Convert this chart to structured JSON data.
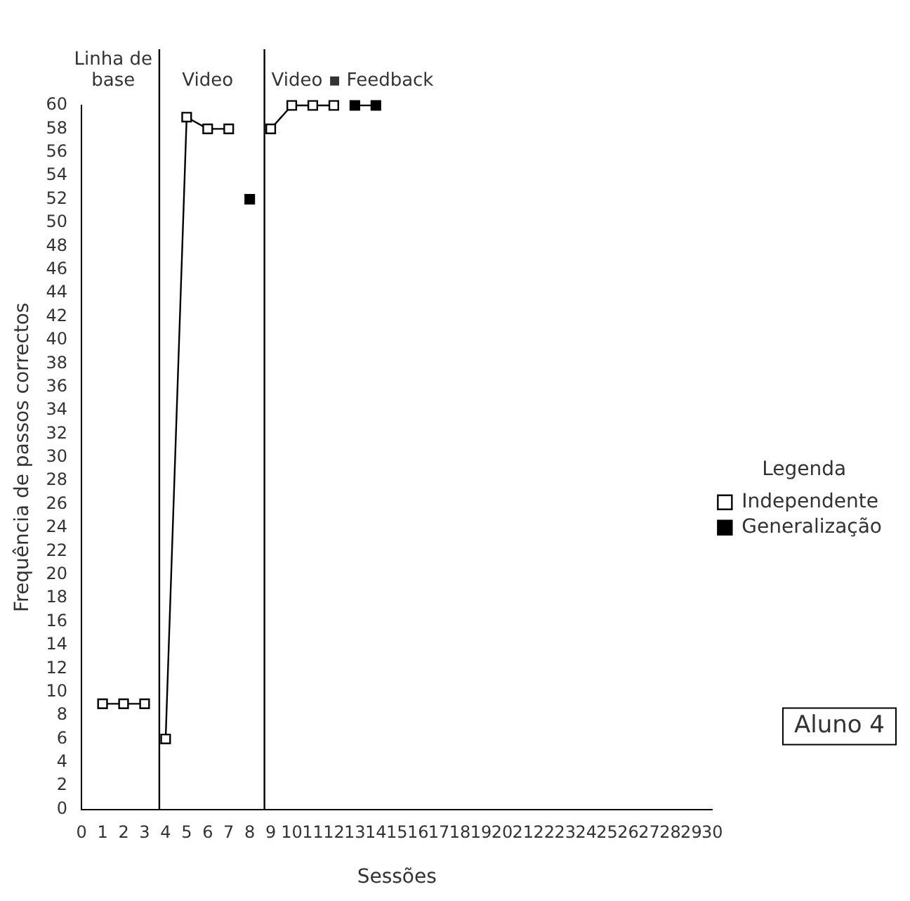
{
  "chart_data": {
    "type": "line",
    "xlabel": "Sessões",
    "ylabel": "Frequência de passos correctos",
    "x": [
      1,
      2,
      3,
      4,
      5,
      6,
      7,
      8,
      9,
      10,
      11,
      12,
      13,
      14
    ],
    "series": [
      {
        "name": "Independente",
        "color": "#000000",
        "values": [
          9,
          9,
          9,
          6,
          59,
          58,
          58,
          null,
          58,
          60,
          60,
          60,
          null,
          null
        ]
      },
      {
        "name": "Generalização",
        "color": "#000000",
        "values": [
          null,
          null,
          null,
          null,
          null,
          null,
          null,
          52,
          null,
          null,
          null,
          null,
          60,
          60
        ]
      }
    ],
    "xlim": [
      0,
      30
    ],
    "xticks": [
      0,
      1,
      2,
      3,
      4,
      5,
      6,
      7,
      8,
      9,
      10,
      11,
      12,
      13,
      14,
      15,
      16,
      17,
      18,
      19,
      20,
      21,
      22,
      23,
      24,
      25,
      26,
      27,
      28,
      29,
      30
    ],
    "ylim": [
      0,
      60
    ],
    "yticks": [
      0,
      2,
      4,
      6,
      8,
      10,
      12,
      14,
      16,
      18,
      20,
      22,
      24,
      26,
      28,
      30,
      32,
      34,
      36,
      38,
      40,
      42,
      44,
      46,
      48,
      50,
      52,
      54,
      56,
      58,
      60
    ],
    "ref_lines": [
      {
        "axis": "x",
        "value": 3.7,
        "color": "#000000"
      },
      {
        "axis": "x",
        "value": 8.7,
        "color": "#000000"
      }
    ],
    "annotations": [
      "Linha de base",
      "Video",
      "Video ▪ Feedback",
      "Aluno 4"
    ],
    "legend": "right",
    "legend_title": "Legenda",
    "marker": "square",
    "line_style": "solid",
    "grid": false
  }
}
